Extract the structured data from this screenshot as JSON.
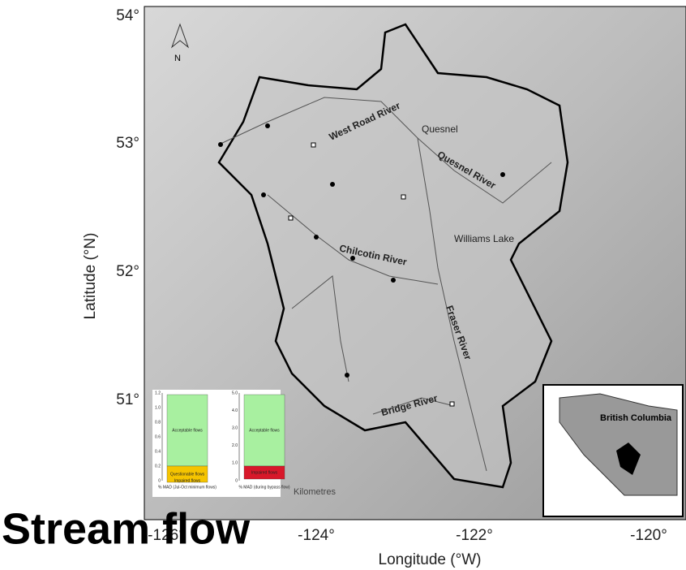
{
  "axes": {
    "y_label": "Latitude (°N)",
    "x_label": "Longitude (°W)",
    "y_ticks": [
      "54°",
      "53°",
      "52°",
      "51°"
    ],
    "x_ticks": [
      "-126°",
      "-124°",
      "-122°",
      "-120°"
    ]
  },
  "north_arrow": "N",
  "map_labels": [
    "West Road River",
    "Quesnel",
    "Quesnel River",
    "Williams Lake",
    "Chilcotin River",
    "Fraser River",
    "Bridge River"
  ],
  "scale_label": "Kilometres",
  "inset": {
    "label": "British Columbia"
  },
  "flow_charts": [
    {
      "ticks": [
        "0",
        "0.2",
        "0.4",
        "0.6",
        "0.8",
        "1.0",
        "1.2"
      ],
      "zones": [
        "Acceptable flows",
        "Questionable flows",
        "Impaired flows"
      ],
      "x_label": "% MAD (Jul-Oct minimum flows)"
    },
    {
      "ticks": [
        "0",
        "1.0",
        "2.0",
        "3.0",
        "4.0",
        "5.0"
      ],
      "zones": [
        "Acceptable flows",
        "Impaired flows"
      ],
      "x_label": "% MAD (during bypass flow)"
    }
  ],
  "caption": "Stream flow"
}
